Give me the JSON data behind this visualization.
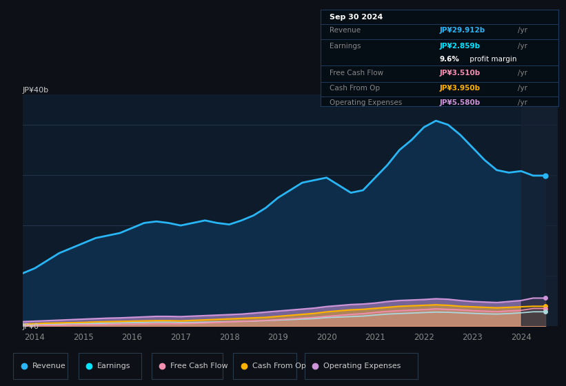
{
  "background_color": "#0d1117",
  "plot_bg_color": "#0d1b2a",
  "grid_color": "#253a52",
  "years_x": [
    2013.75,
    2014.0,
    2014.25,
    2014.5,
    2014.75,
    2015.0,
    2015.25,
    2015.5,
    2015.75,
    2016.0,
    2016.25,
    2016.5,
    2016.75,
    2017.0,
    2017.25,
    2017.5,
    2017.75,
    2018.0,
    2018.25,
    2018.5,
    2018.75,
    2019.0,
    2019.25,
    2019.5,
    2019.75,
    2020.0,
    2020.25,
    2020.5,
    2020.75,
    2021.0,
    2021.25,
    2021.5,
    2021.75,
    2022.0,
    2022.25,
    2022.5,
    2022.75,
    2023.0,
    2023.25,
    2023.5,
    2023.75,
    2024.0,
    2024.25,
    2024.5
  ],
  "revenue": [
    10.5,
    11.5,
    13.0,
    14.5,
    15.5,
    16.5,
    17.5,
    18.0,
    18.5,
    19.5,
    20.5,
    20.8,
    20.5,
    20.0,
    20.5,
    21.0,
    20.5,
    20.2,
    21.0,
    22.0,
    23.5,
    25.5,
    27.0,
    28.5,
    29.0,
    29.5,
    28.0,
    26.5,
    27.0,
    29.5,
    32.0,
    35.0,
    37.0,
    39.5,
    40.8,
    40.0,
    38.0,
    35.5,
    33.0,
    31.0,
    30.5,
    30.8,
    29.9,
    29.9
  ],
  "earnings": [
    0.25,
    0.3,
    0.35,
    0.4,
    0.5,
    0.5,
    0.55,
    0.6,
    0.65,
    0.7,
    0.75,
    0.8,
    0.8,
    0.75,
    0.75,
    0.8,
    0.85,
    0.9,
    0.95,
    1.0,
    1.1,
    1.2,
    1.3,
    1.4,
    1.5,
    1.7,
    1.8,
    1.9,
    2.0,
    2.2,
    2.4,
    2.5,
    2.6,
    2.7,
    2.8,
    2.75,
    2.65,
    2.55,
    2.45,
    2.4,
    2.5,
    2.65,
    2.859,
    2.859
  ],
  "free_cash_flow": [
    0.1,
    0.15,
    0.2,
    0.2,
    0.25,
    0.3,
    0.3,
    0.35,
    0.4,
    0.4,
    0.45,
    0.5,
    0.5,
    0.5,
    0.55,
    0.65,
    0.75,
    0.85,
    0.95,
    1.05,
    1.15,
    1.3,
    1.45,
    1.6,
    1.75,
    1.95,
    2.15,
    2.35,
    2.5,
    2.75,
    2.95,
    3.1,
    3.2,
    3.3,
    3.45,
    3.35,
    3.25,
    3.1,
    3.0,
    2.9,
    3.05,
    3.15,
    3.51,
    3.51
  ],
  "cash_from_op": [
    0.4,
    0.5,
    0.6,
    0.65,
    0.7,
    0.75,
    0.85,
    0.9,
    0.95,
    1.0,
    1.05,
    1.1,
    1.1,
    1.05,
    1.15,
    1.25,
    1.35,
    1.45,
    1.55,
    1.65,
    1.75,
    1.95,
    2.15,
    2.35,
    2.55,
    2.85,
    3.05,
    3.25,
    3.35,
    3.55,
    3.75,
    3.95,
    4.05,
    4.15,
    4.25,
    4.15,
    3.95,
    3.85,
    3.75,
    3.65,
    3.75,
    3.85,
    3.95,
    3.95
  ],
  "op_expenses": [
    0.9,
    1.0,
    1.1,
    1.2,
    1.3,
    1.4,
    1.5,
    1.6,
    1.65,
    1.75,
    1.85,
    1.95,
    1.95,
    1.9,
    2.0,
    2.1,
    2.2,
    2.3,
    2.4,
    2.6,
    2.8,
    3.0,
    3.2,
    3.4,
    3.6,
    3.9,
    4.1,
    4.3,
    4.4,
    4.6,
    4.9,
    5.1,
    5.2,
    5.3,
    5.45,
    5.35,
    5.1,
    4.9,
    4.8,
    4.7,
    4.9,
    5.1,
    5.58,
    5.58
  ],
  "revenue_color": "#29b6f6",
  "revenue_fill": "#0d2d4a",
  "earnings_color": "#00e5ff",
  "earnings_fill": "#003d40",
  "free_cash_flow_color": "#f48fb1",
  "free_cash_flow_fill": "#4a1530",
  "cash_from_op_color": "#ffb300",
  "cash_from_op_fill": "#4a3000",
  "op_expenses_color": "#ce93d8",
  "op_expenses_fill": "#4a1a6a",
  "ylabel_text": "JP¥40b",
  "y0_text": "JP¥0",
  "ylim": [
    0,
    46
  ],
  "xlim": [
    2013.75,
    2024.75
  ],
  "xticks": [
    2014,
    2015,
    2016,
    2017,
    2018,
    2019,
    2020,
    2021,
    2022,
    2023,
    2024
  ],
  "tooltip": {
    "date": "Sep 30 2024",
    "revenue_label": "Revenue",
    "revenue_val": "JP¥29.912b",
    "revenue_color": "#29b6f6",
    "earnings_label": "Earnings",
    "earnings_val": "JP¥2.859b",
    "earnings_color": "#00e5ff",
    "margin_bold": "9.6%",
    "margin_rest": " profit margin",
    "fcf_label": "Free Cash Flow",
    "fcf_val": "JP¥3.510b",
    "fcf_color": "#f48fb1",
    "cop_label": "Cash From Op",
    "cop_val": "JP¥3.950b",
    "cop_color": "#ffb300",
    "opex_label": "Operating Expenses",
    "opex_val": "JP¥5.580b",
    "opex_color": "#ce93d8"
  },
  "legend_items": [
    {
      "label": "Revenue",
      "color": "#29b6f6"
    },
    {
      "label": "Earnings",
      "color": "#00e5ff"
    },
    {
      "label": "Free Cash Flow",
      "color": "#f48fb1"
    },
    {
      "label": "Cash From Op",
      "color": "#ffb300"
    },
    {
      "label": "Operating Expenses",
      "color": "#ce93d8"
    }
  ]
}
